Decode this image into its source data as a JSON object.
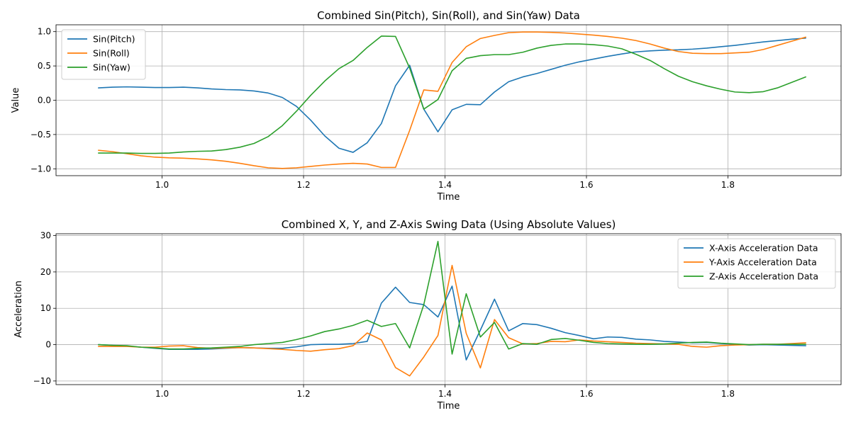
{
  "chart_data": [
    {
      "type": "line",
      "title": "Combined Sin(Pitch), Sin(Roll), and Sin(Yaw) Data",
      "xlabel": "Time",
      "ylabel": "Value",
      "xlim": [
        0.85,
        1.96
      ],
      "ylim": [
        -1.1,
        1.1
      ],
      "xticks": [
        "1.0",
        "1.2",
        "1.4",
        "1.6",
        "1.8"
      ],
      "xtick_values": [
        1.0,
        1.2,
        1.4,
        1.6,
        1.8
      ],
      "yticks": [
        "−1.0",
        "−0.5",
        "0.0",
        "0.5",
        "1.0"
      ],
      "ytick_values": [
        -1.0,
        -0.5,
        0.0,
        0.5,
        1.0
      ],
      "grid": true,
      "legend_position": "top-left",
      "x": [
        0.91,
        0.93,
        0.95,
        0.97,
        0.99,
        1.01,
        1.03,
        1.05,
        1.07,
        1.09,
        1.11,
        1.13,
        1.15,
        1.17,
        1.19,
        1.21,
        1.23,
        1.25,
        1.27,
        1.29,
        1.31,
        1.33,
        1.35,
        1.37,
        1.39,
        1.41,
        1.43,
        1.45,
        1.47,
        1.49,
        1.51,
        1.53,
        1.55,
        1.57,
        1.59,
        1.61,
        1.63,
        1.65,
        1.67,
        1.69,
        1.71,
        1.73,
        1.75,
        1.77,
        1.79,
        1.81,
        1.83,
        1.85,
        1.87,
        1.89,
        1.91
      ],
      "series": [
        {
          "name": "Sin(Pitch)",
          "color": "#1f77b4",
          "values": [
            0.18,
            0.19,
            0.195,
            0.19,
            0.185,
            0.185,
            0.19,
            0.18,
            0.165,
            0.155,
            0.15,
            0.135,
            0.105,
            0.04,
            -0.09,
            -0.29,
            -0.52,
            -0.7,
            -0.76,
            -0.62,
            -0.34,
            0.21,
            0.51,
            -0.13,
            -0.46,
            -0.14,
            -0.06,
            -0.065,
            0.12,
            0.27,
            0.34,
            0.39,
            0.45,
            0.51,
            0.56,
            0.6,
            0.64,
            0.675,
            0.705,
            0.72,
            0.73,
            0.735,
            0.745,
            0.76,
            0.78,
            0.8,
            0.825,
            0.85,
            0.87,
            0.89,
            0.905
          ]
        },
        {
          "name": "Sin(Roll)",
          "color": "#ff7f0e",
          "values": [
            -0.73,
            -0.75,
            -0.78,
            -0.81,
            -0.83,
            -0.84,
            -0.845,
            -0.855,
            -0.87,
            -0.89,
            -0.92,
            -0.955,
            -0.985,
            -0.995,
            -0.985,
            -0.965,
            -0.945,
            -0.93,
            -0.92,
            -0.93,
            -0.98,
            -0.98,
            -0.44,
            0.15,
            0.13,
            0.55,
            0.78,
            0.9,
            0.945,
            0.985,
            0.995,
            0.995,
            0.99,
            0.98,
            0.965,
            0.95,
            0.93,
            0.905,
            0.87,
            0.82,
            0.76,
            0.71,
            0.685,
            0.68,
            0.68,
            0.69,
            0.7,
            0.74,
            0.8,
            0.86,
            0.92
          ]
        },
        {
          "name": "Sin(Yaw)",
          "color": "#2ca02c",
          "values": [
            -0.77,
            -0.77,
            -0.77,
            -0.775,
            -0.775,
            -0.77,
            -0.755,
            -0.745,
            -0.74,
            -0.72,
            -0.685,
            -0.63,
            -0.53,
            -0.37,
            -0.16,
            0.07,
            0.28,
            0.46,
            0.58,
            0.77,
            0.935,
            0.93,
            0.47,
            -0.13,
            0.01,
            0.43,
            0.61,
            0.65,
            0.665,
            0.665,
            0.7,
            0.76,
            0.8,
            0.82,
            0.82,
            0.81,
            0.79,
            0.75,
            0.67,
            0.58,
            0.46,
            0.35,
            0.27,
            0.21,
            0.16,
            0.12,
            0.11,
            0.125,
            0.18,
            0.26,
            0.34
          ]
        }
      ]
    },
    {
      "type": "line",
      "title": "Combined X, Y, and Z-Axis Swing Data (Using Absolute Values)",
      "xlabel": "Time",
      "ylabel": "Acceleration",
      "xlim": [
        0.85,
        1.96
      ],
      "ylim": [
        -11,
        30.5
      ],
      "xticks": [
        "1.0",
        "1.2",
        "1.4",
        "1.6",
        "1.8"
      ],
      "xtick_values": [
        1.0,
        1.2,
        1.4,
        1.6,
        1.8
      ],
      "yticks": [
        "−10",
        "0",
        "10",
        "20",
        "30"
      ],
      "ytick_values": [
        -10,
        0,
        10,
        20,
        30
      ],
      "grid": true,
      "legend_position": "top-right",
      "x": [
        0.91,
        0.93,
        0.95,
        0.97,
        0.99,
        1.01,
        1.03,
        1.05,
        1.07,
        1.09,
        1.11,
        1.13,
        1.15,
        1.17,
        1.19,
        1.21,
        1.23,
        1.25,
        1.27,
        1.29,
        1.31,
        1.33,
        1.35,
        1.37,
        1.39,
        1.41,
        1.43,
        1.45,
        1.47,
        1.49,
        1.51,
        1.53,
        1.55,
        1.57,
        1.59,
        1.61,
        1.63,
        1.65,
        1.67,
        1.69,
        1.71,
        1.73,
        1.75,
        1.77,
        1.79,
        1.81,
        1.83,
        1.85,
        1.87,
        1.89,
        1.91
      ],
      "series": [
        {
          "name": "X-Axis Acceleration Data",
          "color": "#1f77b4",
          "values": [
            0.0,
            -0.2,
            -0.4,
            -0.7,
            -1.0,
            -1.3,
            -1.3,
            -1.3,
            -1.2,
            -1.0,
            -0.8,
            -0.9,
            -1.0,
            -1.0,
            -0.6,
            0.0,
            0.1,
            0.1,
            0.3,
            0.9,
            11.4,
            15.8,
            11.6,
            11.0,
            7.6,
            16.1,
            -4.2,
            4.0,
            12.5,
            3.8,
            5.8,
            5.5,
            4.5,
            3.3,
            2.5,
            1.6,
            2.1,
            2.0,
            1.5,
            1.3,
            0.9,
            0.7,
            0.5,
            0.6,
            0.3,
            0.1,
            -0.1,
            0.0,
            -0.1,
            -0.2,
            -0.3
          ]
        },
        {
          "name": "Y-Axis Acceleration Data",
          "color": "#ff7f0e",
          "values": [
            -0.5,
            -0.5,
            -0.5,
            -0.7,
            -0.7,
            -0.4,
            -0.3,
            -0.8,
            -1.0,
            -0.9,
            -0.8,
            -0.9,
            -1.1,
            -1.3,
            -1.6,
            -1.8,
            -1.4,
            -1.1,
            -0.3,
            3.2,
            1.3,
            -6.3,
            -8.6,
            -3.4,
            2.5,
            21.8,
            3.1,
            -6.4,
            6.9,
            1.9,
            0.2,
            0.3,
            0.9,
            0.8,
            1.3,
            1.0,
            0.8,
            0.6,
            0.4,
            0.3,
            0.2,
            0.1,
            -0.5,
            -0.7,
            -0.3,
            -0.1,
            0.0,
            0.1,
            0.1,
            0.3,
            0.5
          ]
        },
        {
          "name": "Z-Axis Acceleration Data",
          "color": "#2ca02c",
          "values": [
            0.0,
            -0.2,
            -0.3,
            -0.7,
            -0.9,
            -1.2,
            -1.2,
            -1.0,
            -0.9,
            -0.7,
            -0.5,
            0.0,
            0.3,
            0.6,
            1.4,
            2.4,
            3.6,
            4.3,
            5.3,
            6.7,
            5.0,
            5.8,
            -0.9,
            11.0,
            28.4,
            -2.6,
            14.0,
            2.1,
            6.1,
            -1.2,
            0.3,
            0.1,
            1.4,
            1.7,
            1.2,
            0.6,
            0.3,
            0.2,
            0.1,
            0.1,
            0.2,
            0.4,
            0.6,
            0.7,
            0.4,
            0.2,
            0.0,
            0.1,
            0.1,
            0.1,
            0.1
          ]
        }
      ]
    }
  ]
}
